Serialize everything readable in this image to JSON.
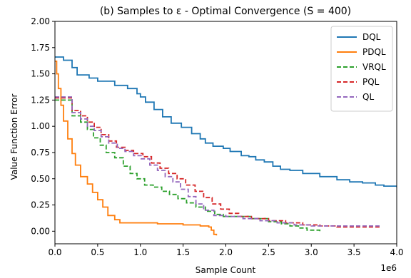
{
  "chart_data": {
    "type": "line",
    "title": "(b) Samples to ε - Optimal Convergence (S = 400)",
    "xlabel": "Sample Count",
    "ylabel": "Value Function Error",
    "x_offset_label": "1e6",
    "xlim": [
      0,
      4000000
    ],
    "ylim": [
      -0.12,
      2.0
    ],
    "x_ticks": [
      0,
      500000,
      1000000,
      1500000,
      2000000,
      2500000,
      3000000,
      3500000,
      4000000
    ],
    "x_tick_labels": [
      "0.0",
      "0.5",
      "1.0",
      "1.5",
      "2.0",
      "2.5",
      "3.0",
      "3.5",
      "4.0"
    ],
    "y_ticks": [
      0.0,
      0.25,
      0.5,
      0.75,
      1.0,
      1.25,
      1.5,
      1.75,
      2.0
    ],
    "y_tick_labels": [
      "0.00",
      "0.25",
      "0.50",
      "0.75",
      "1.00",
      "1.25",
      "1.50",
      "1.75",
      "2.00"
    ],
    "grid": false,
    "legend_position": "top-right",
    "series": [
      {
        "name": "DQL",
        "color": "#1f77b4",
        "dash": "solid",
        "points": [
          [
            0,
            1.66
          ],
          [
            100000,
            1.63
          ],
          [
            200000,
            1.56
          ],
          [
            260000,
            1.49
          ],
          [
            400000,
            1.46
          ],
          [
            500000,
            1.43
          ],
          [
            700000,
            1.39
          ],
          [
            850000,
            1.36
          ],
          [
            960000,
            1.31
          ],
          [
            1000000,
            1.28
          ],
          [
            1060000,
            1.23
          ],
          [
            1160000,
            1.16
          ],
          [
            1260000,
            1.09
          ],
          [
            1360000,
            1.03
          ],
          [
            1480000,
            0.99
          ],
          [
            1600000,
            0.93
          ],
          [
            1700000,
            0.88
          ],
          [
            1760000,
            0.84
          ],
          [
            1850000,
            0.81
          ],
          [
            1970000,
            0.79
          ],
          [
            2050000,
            0.76
          ],
          [
            2180000,
            0.72
          ],
          [
            2270000,
            0.71
          ],
          [
            2350000,
            0.68
          ],
          [
            2450000,
            0.66
          ],
          [
            2550000,
            0.62
          ],
          [
            2640000,
            0.59
          ],
          [
            2750000,
            0.58
          ],
          [
            2900000,
            0.55
          ],
          [
            3100000,
            0.52
          ],
          [
            3300000,
            0.49
          ],
          [
            3450000,
            0.47
          ],
          [
            3600000,
            0.46
          ],
          [
            3750000,
            0.44
          ],
          [
            3850000,
            0.43
          ],
          [
            4000000,
            0.42
          ]
        ]
      },
      {
        "name": "PDQL",
        "color": "#ff7f0e",
        "dash": "solid",
        "points": [
          [
            0,
            1.62
          ],
          [
            20000,
            1.5
          ],
          [
            40000,
            1.36
          ],
          [
            70000,
            1.2
          ],
          [
            100000,
            1.05
          ],
          [
            150000,
            0.88
          ],
          [
            200000,
            0.74
          ],
          [
            240000,
            0.63
          ],
          [
            300000,
            0.52
          ],
          [
            380000,
            0.45
          ],
          [
            440000,
            0.37
          ],
          [
            500000,
            0.3
          ],
          [
            560000,
            0.23
          ],
          [
            620000,
            0.15
          ],
          [
            700000,
            0.11
          ],
          [
            760000,
            0.08
          ],
          [
            900000,
            0.08
          ],
          [
            1200000,
            0.07
          ],
          [
            1500000,
            0.06
          ],
          [
            1700000,
            0.05
          ],
          [
            1800000,
            0.04
          ],
          [
            1830000,
            0.01
          ],
          [
            1860000,
            -0.03
          ],
          [
            1890000,
            -0.04
          ]
        ]
      },
      {
        "name": "VRQL",
        "color": "#2ca02c",
        "dash": "dashed",
        "points": [
          [
            0,
            1.25
          ],
          [
            200000,
            1.1
          ],
          [
            300000,
            1.04
          ],
          [
            380000,
            0.97
          ],
          [
            450000,
            0.89
          ],
          [
            530000,
            0.82
          ],
          [
            600000,
            0.75
          ],
          [
            700000,
            0.7
          ],
          [
            800000,
            0.62
          ],
          [
            880000,
            0.55
          ],
          [
            960000,
            0.5
          ],
          [
            1050000,
            0.44
          ],
          [
            1150000,
            0.42
          ],
          [
            1250000,
            0.38
          ],
          [
            1340000,
            0.35
          ],
          [
            1440000,
            0.31
          ],
          [
            1540000,
            0.27
          ],
          [
            1650000,
            0.23
          ],
          [
            1760000,
            0.19
          ],
          [
            1870000,
            0.16
          ],
          [
            1970000,
            0.14
          ],
          [
            2100000,
            0.14
          ],
          [
            2300000,
            0.12
          ],
          [
            2500000,
            0.09
          ],
          [
            2650000,
            0.07
          ],
          [
            2750000,
            0.05
          ],
          [
            2850000,
            0.03
          ],
          [
            2950000,
            0.01
          ],
          [
            3100000,
            0.0
          ]
        ]
      },
      {
        "name": "PQL",
        "color": "#d62728",
        "dash": "dashed",
        "points": [
          [
            0,
            1.27
          ],
          [
            200000,
            1.15
          ],
          [
            300000,
            1.1
          ],
          [
            380000,
            1.04
          ],
          [
            460000,
            0.99
          ],
          [
            540000,
            0.92
          ],
          [
            630000,
            0.86
          ],
          [
            720000,
            0.8
          ],
          [
            820000,
            0.77
          ],
          [
            920000,
            0.74
          ],
          [
            1030000,
            0.71
          ],
          [
            1130000,
            0.65
          ],
          [
            1230000,
            0.6
          ],
          [
            1330000,
            0.55
          ],
          [
            1430000,
            0.5
          ],
          [
            1530000,
            0.44
          ],
          [
            1640000,
            0.38
          ],
          [
            1740000,
            0.32
          ],
          [
            1840000,
            0.26
          ],
          [
            1940000,
            0.21
          ],
          [
            2040000,
            0.17
          ],
          [
            2150000,
            0.14
          ],
          [
            2300000,
            0.12
          ],
          [
            2500000,
            0.1
          ],
          [
            2700000,
            0.08
          ],
          [
            2900000,
            0.06
          ],
          [
            3100000,
            0.05
          ],
          [
            3300000,
            0.04
          ],
          [
            3500000,
            0.04
          ],
          [
            3800000,
            0.04
          ]
        ]
      },
      {
        "name": "QL",
        "color": "#9467bd",
        "dash": "dashed",
        "points": [
          [
            0,
            1.28
          ],
          [
            200000,
            1.13
          ],
          [
            300000,
            1.07
          ],
          [
            380000,
            1.0
          ],
          [
            460000,
            0.96
          ],
          [
            540000,
            0.9
          ],
          [
            630000,
            0.84
          ],
          [
            730000,
            0.79
          ],
          [
            820000,
            0.76
          ],
          [
            920000,
            0.72
          ],
          [
            1010000,
            0.69
          ],
          [
            1110000,
            0.63
          ],
          [
            1200000,
            0.58
          ],
          [
            1290000,
            0.52
          ],
          [
            1380000,
            0.47
          ],
          [
            1470000,
            0.4
          ],
          [
            1560000,
            0.33
          ],
          [
            1650000,
            0.26
          ],
          [
            1740000,
            0.2
          ],
          [
            1860000,
            0.15
          ],
          [
            2000000,
            0.14
          ],
          [
            2200000,
            0.12
          ],
          [
            2400000,
            0.1
          ],
          [
            2600000,
            0.08
          ],
          [
            2800000,
            0.06
          ],
          [
            3000000,
            0.05
          ],
          [
            3300000,
            0.05
          ],
          [
            3800000,
            0.05
          ]
        ]
      }
    ]
  }
}
